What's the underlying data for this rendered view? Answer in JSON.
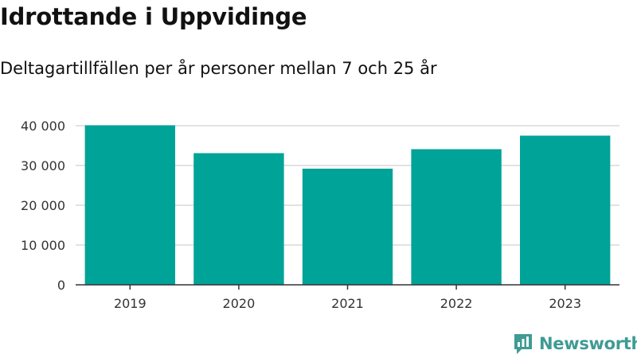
{
  "header": {
    "title": "Idrottande i Uppvidinge",
    "subtitle": "Deltagartillfällen per år personer mellan 7 och 25 år"
  },
  "branding": {
    "logo_text": "Newsworthy",
    "logo_icon": "newsworthy-chart-icon",
    "logo_color": "#3f9b94"
  },
  "colors": {
    "bar": "#00a398",
    "grid": "#d9d9d9",
    "axis": "#333333"
  },
  "chart_data": {
    "type": "bar",
    "categories": [
      "2019",
      "2020",
      "2021",
      "2022",
      "2023"
    ],
    "values": [
      40100,
      33100,
      29200,
      34100,
      37500
    ],
    "title": "Idrottande i Uppvidinge",
    "subtitle": "Deltagartillfällen per år personer mellan 7 och 25 år",
    "xlabel": "",
    "ylabel": "",
    "ylim": [
      0,
      40000
    ],
    "yticks": [
      0,
      10000,
      20000,
      30000,
      40000
    ],
    "ytick_labels": [
      "0",
      "10 000",
      "20 000",
      "30 000",
      "40 000"
    ],
    "grid": true,
    "legend": "none"
  }
}
